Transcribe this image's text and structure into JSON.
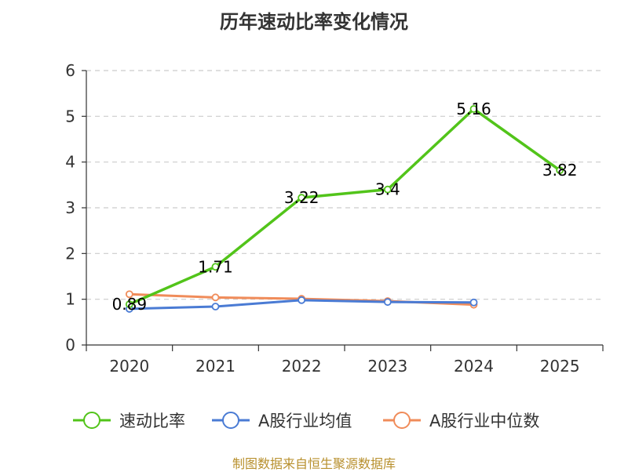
{
  "title": "历年速动比率变化情况",
  "source": "制图数据来自恒生聚源数据库",
  "colors": {
    "primary": "#52c41a",
    "average": "#4a7bd4",
    "median": "#f08c5a",
    "grid": "#cccccc",
    "axis": "#333333"
  },
  "chart_data": {
    "type": "line",
    "title": "历年速动比率变化情况",
    "xlabel": "",
    "ylabel": "",
    "categories": [
      "2020",
      "2021",
      "2022",
      "2023",
      "2024",
      "2025"
    ],
    "ylim": [
      0,
      6
    ],
    "yticks": [
      "0",
      "1",
      "2",
      "3",
      "4",
      "5",
      "6"
    ],
    "grid": true,
    "legend_position": "bottom",
    "series": [
      {
        "name": "速动比率",
        "color": "#52c41a",
        "values": [
          0.89,
          1.71,
          3.22,
          3.4,
          5.16,
          3.82
        ],
        "labels": [
          "0.89",
          "1.71",
          "3.22",
          "3.4",
          "5.16",
          "3.82"
        ]
      },
      {
        "name": "A股行业均值",
        "color": "#4a7bd4",
        "values": [
          0.79,
          0.84,
          0.98,
          0.94,
          0.93,
          null
        ]
      },
      {
        "name": "A股行业中位数",
        "color": "#f08c5a",
        "values": [
          1.11,
          1.04,
          1.01,
          0.96,
          0.88,
          null
        ]
      }
    ]
  }
}
